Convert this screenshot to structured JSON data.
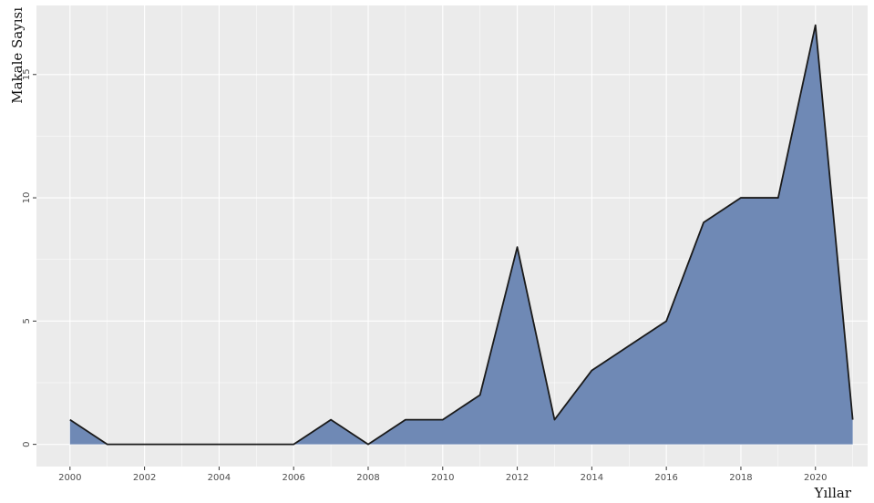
{
  "chart_data": {
    "type": "area",
    "xlabel": "Yıllar",
    "ylabel": "Makale Sayısı",
    "x": [
      2000,
      2001,
      2002,
      2003,
      2004,
      2005,
      2006,
      2007,
      2008,
      2009,
      2010,
      2011,
      2012,
      2013,
      2014,
      2015,
      2016,
      2017,
      2018,
      2019,
      2020,
      2021
    ],
    "values": [
      1,
      0,
      0,
      0,
      0,
      0,
      0,
      1,
      0,
      1,
      1,
      2,
      8,
      1,
      3,
      4,
      5,
      9,
      10,
      10,
      17,
      1
    ],
    "xticks": [
      "2000",
      "2002",
      "2004",
      "2006",
      "2008",
      "2010",
      "2012",
      "2014",
      "2016",
      "2018",
      "2020"
    ],
    "yticks": [
      "0",
      "5",
      "10",
      "15"
    ],
    "xlim": [
      1999.1,
      2021.4
    ],
    "ylim": [
      -0.9,
      17.8
    ],
    "grid": true,
    "fill_color": "#6f89b5",
    "line_color": "#1a1a1a",
    "panel_color": "#ebebeb",
    "grid_color": "#ffffff"
  }
}
